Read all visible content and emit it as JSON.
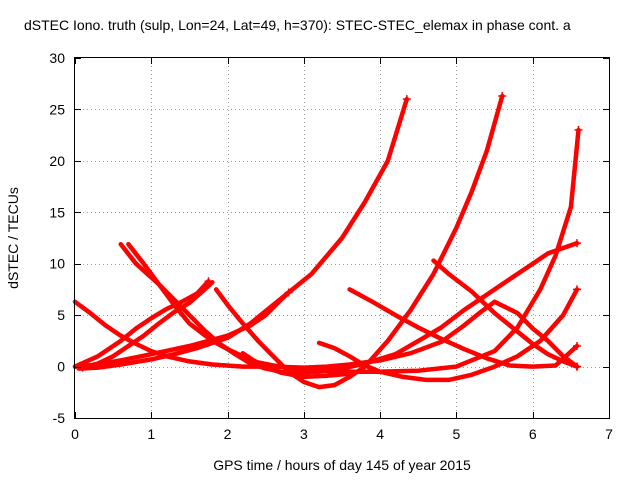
{
  "chart_data": {
    "type": "line",
    "title": "dSTEC Iono. truth (sulp, Lon=24, Lat=49, h=370): STEC-STEC_elemax in phase cont. a",
    "xlabel": "GPS time / hours of day 145 of year 2015",
    "ylabel": "dSTEC  / TECUs",
    "xlim": [
      0,
      7
    ],
    "ylim": [
      -5,
      30
    ],
    "xticks": [
      0,
      1,
      2,
      3,
      4,
      5,
      6,
      7
    ],
    "yticks": [
      -5,
      0,
      5,
      10,
      15,
      20,
      25,
      30
    ],
    "grid": true,
    "legend": "none",
    "marker": "plus",
    "series_color": "#ff0000",
    "series": [
      {
        "points": [
          [
            0,
            0
          ],
          [
            0.3,
            0.2
          ],
          [
            0.6,
            0.6
          ],
          [
            1,
            1.2
          ],
          [
            1.5,
            2
          ],
          [
            2,
            3
          ],
          [
            2.3,
            4
          ],
          [
            2.5,
            5
          ],
          [
            2.7,
            6.5
          ],
          [
            2.8,
            7.2
          ],
          [
            3.1,
            9
          ],
          [
            3.5,
            12.5
          ],
          [
            3.8,
            16
          ],
          [
            4.1,
            20
          ],
          [
            4.35,
            26
          ]
        ]
      },
      {
        "points": [
          [
            0.05,
            -0.2
          ],
          [
            0.3,
            -0.1
          ],
          [
            0.6,
            0.2
          ],
          [
            1,
            0.7
          ],
          [
            1.3,
            1.2
          ],
          [
            1.6,
            1.8
          ],
          [
            2,
            2.8
          ],
          [
            2.3,
            4.2
          ],
          [
            2.6,
            6
          ],
          [
            2.8,
            7.2
          ]
        ]
      },
      {
        "points": [
          [
            0.7,
            11.9
          ],
          [
            0.9,
            10
          ],
          [
            1.1,
            8
          ],
          [
            1.3,
            6
          ],
          [
            1.5,
            4.2
          ],
          [
            1.8,
            2.5
          ],
          [
            2,
            1.7
          ],
          [
            2.2,
            1
          ],
          [
            2.4,
            0.4
          ],
          [
            2.6,
            0.1
          ],
          [
            2.8,
            -0.1
          ],
          [
            3,
            -0.3
          ],
          [
            3.2,
            -0.4
          ],
          [
            3.5,
            -0.5
          ],
          [
            4,
            -0.5
          ],
          [
            4.5,
            -0.4
          ],
          [
            5,
            0
          ],
          [
            5.5,
            1.5
          ],
          [
            5.8,
            3.8
          ],
          [
            6.1,
            7.5
          ],
          [
            6.3,
            10.8
          ],
          [
            6.5,
            15.5
          ],
          [
            6.6,
            23
          ]
        ]
      },
      {
        "points": [
          [
            0.6,
            11.9
          ],
          [
            0.8,
            10
          ],
          [
            1.1,
            8
          ],
          [
            1.3,
            6.5
          ],
          [
            1.5,
            5
          ],
          [
            1.7,
            3.5
          ],
          [
            1.9,
            2.2
          ],
          [
            2.1,
            1.2
          ],
          [
            2.3,
            0.3
          ],
          [
            2.5,
            -0.2
          ],
          [
            2.7,
            -0.5
          ],
          [
            2.9,
            -0.6
          ],
          [
            3.2,
            -0.5
          ],
          [
            3.5,
            -0.2
          ],
          [
            3.8,
            0.3
          ],
          [
            4.2,
            1.2
          ],
          [
            4.5,
            2.5
          ],
          [
            4.8,
            3.8
          ],
          [
            5.1,
            5.5
          ],
          [
            5.4,
            7
          ],
          [
            5.7,
            8.5
          ],
          [
            6,
            10
          ],
          [
            6.2,
            11
          ],
          [
            6.58,
            12
          ]
        ]
      },
      {
        "points": [
          [
            0,
            6.3
          ],
          [
            0.2,
            5.2
          ],
          [
            0.4,
            4
          ],
          [
            0.6,
            3
          ],
          [
            0.8,
            2.2
          ],
          [
            1,
            1.5
          ],
          [
            1.2,
            1
          ],
          [
            1.5,
            0.5
          ],
          [
            1.8,
            0.2
          ],
          [
            2.2,
            0
          ],
          [
            2.6,
            0
          ],
          [
            3,
            -0.1
          ],
          [
            3.3,
            0
          ],
          [
            3.6,
            0.2
          ],
          [
            4,
            0.6
          ],
          [
            4.4,
            1.3
          ],
          [
            4.8,
            2.4
          ],
          [
            5.1,
            4
          ],
          [
            5.3,
            5.2
          ],
          [
            5.5,
            6.3
          ],
          [
            5.8,
            5.2
          ],
          [
            6,
            3.7
          ],
          [
            6.2,
            2.5
          ],
          [
            6.4,
            1
          ],
          [
            6.58,
            0
          ]
        ]
      },
      {
        "points": [
          [
            0,
            0
          ],
          [
            0.3,
            1
          ],
          [
            0.6,
            2.5
          ],
          [
            0.8,
            3.7
          ],
          [
            1,
            4.7
          ],
          [
            1.2,
            5.6
          ],
          [
            1.4,
            6.3
          ],
          [
            1.6,
            7.1
          ],
          [
            1.75,
            8.3
          ]
        ]
      },
      {
        "points": [
          [
            1.8,
            8.2
          ],
          [
            1.7,
            7.5
          ],
          [
            1.5,
            6.2
          ],
          [
            1.3,
            5.3
          ],
          [
            1.1,
            4.2
          ],
          [
            0.9,
            3
          ],
          [
            0.7,
            2
          ],
          [
            0.5,
            1
          ],
          [
            0.3,
            0.3
          ],
          [
            0.1,
            -0.1
          ]
        ]
      },
      {
        "points": [
          [
            1.85,
            7.5
          ],
          [
            2,
            6
          ],
          [
            2.2,
            4.2
          ],
          [
            2.4,
            2.5
          ],
          [
            2.6,
            1
          ],
          [
            2.8,
            -0.5
          ],
          [
            3,
            -1.5
          ],
          [
            3.2,
            -2
          ],
          [
            3.4,
            -1.8
          ],
          [
            3.6,
            -1
          ],
          [
            3.8,
            0
          ],
          [
            4.1,
            2.5
          ],
          [
            4.4,
            5.5
          ],
          [
            4.7,
            9
          ],
          [
            5,
            13.5
          ],
          [
            5.2,
            17
          ],
          [
            5.4,
            21
          ],
          [
            5.6,
            26.3
          ]
        ]
      },
      {
        "points": [
          [
            3.2,
            2.3
          ],
          [
            3.4,
            1.8
          ],
          [
            3.6,
            1
          ],
          [
            3.8,
            0.1
          ],
          [
            4,
            -0.5
          ],
          [
            4.3,
            -1
          ],
          [
            4.6,
            -1.3
          ],
          [
            4.9,
            -1.3
          ],
          [
            5.2,
            -0.8
          ],
          [
            5.5,
            0
          ],
          [
            5.8,
            1
          ],
          [
            6.1,
            2.5
          ],
          [
            6.4,
            5
          ],
          [
            6.58,
            7.5
          ]
        ]
      },
      {
        "points": [
          [
            3.6,
            7.5
          ],
          [
            3.9,
            6.3
          ],
          [
            4.2,
            5
          ],
          [
            4.5,
            3.8
          ],
          [
            4.8,
            2.7
          ],
          [
            5.1,
            1.7
          ],
          [
            5.4,
            0.8
          ],
          [
            5.7,
            0.1
          ],
          [
            6,
            0
          ],
          [
            6.3,
            0.1
          ],
          [
            6.58,
            2
          ]
        ]
      },
      {
        "points": [
          [
            4.7,
            10.3
          ],
          [
            4.9,
            9
          ],
          [
            5.2,
            7.3
          ],
          [
            5.5,
            5.2
          ],
          [
            5.8,
            3.4
          ],
          [
            6,
            2.2
          ],
          [
            6.2,
            1.2
          ],
          [
            6.4,
            0.5
          ],
          [
            6.58,
            0
          ]
        ]
      },
      {
        "points": [
          [
            2.2,
            1.3
          ],
          [
            2.4,
            0.3
          ],
          [
            2.7,
            -0.6
          ],
          [
            3,
            -1
          ],
          [
            3.3,
            -0.9
          ],
          [
            3.6,
            -0.7
          ]
        ]
      }
    ]
  }
}
